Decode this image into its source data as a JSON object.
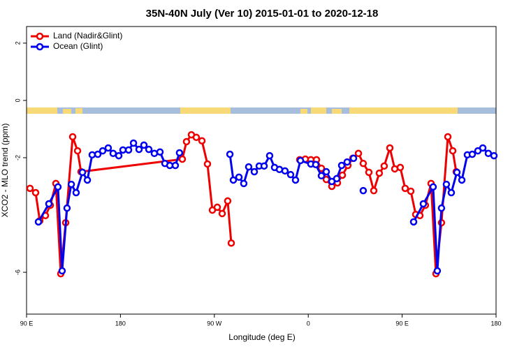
{
  "chart_data": {
    "type": "line",
    "title": "35N-40N July (Ver 10)   2015-01-01 to 2020-12-18",
    "x_label": "Longitude (deg E)",
    "y_label": "XCO2 - MLO trend (ppm)",
    "xlim": [
      90,
      540
    ],
    "xticks": [
      {
        "value": 90,
        "label": "90 E"
      },
      180,
      {
        "value": 270,
        "label": "90 W"
      },
      {
        "value": 360,
        "label": "0"
      },
      {
        "value": 450,
        "label": "90 E"
      },
      {
        "value": 540,
        "label": "180"
      }
    ],
    "ylim": [
      -7.46,
      2.58
    ],
    "yticks": [
      2,
      0,
      -2,
      -6
    ],
    "legend": "top-left",
    "series": [
      {
        "name": "Land (Nadir&Glint)",
        "color": "#ee0000",
        "x": [
          93.3,
          98.7,
          102.7,
          108.1,
          112.8,
          118.1,
          122.8,
          127.5,
          134.2,
          138.9,
          142.2,
          239.3,
          243.3,
          248.0,
          252.7,
          258.1,
          263.4,
          268.1,
          272.8,
          277.5,
          282.8,
          286.2,
          null,
          351.8,
          357.2,
          362.5,
          367.9,
          372.6,
          377.3,
          382.6,
          388.0,
          392.7,
          398.0,
          402.7,
          408.1,
          412.7,
          418.1,
          422.8,
          428.1,
          432.8,
          438.2,
          442.9,
          448.2,
          452.9,
          458.3,
          463.0,
          467.0,
          472.3,
          477.7,
          482.4,
          487.7,
          493.8,
          498.5,
          501.8
        ],
        "values": [
          -3.07,
          -3.22,
          -4.2,
          -4.02,
          -3.66,
          -2.9,
          -6.05,
          -4.27,
          -1.27,
          -1.76,
          -2.49,
          -2.05,
          -1.44,
          -1.2,
          -1.29,
          -1.41,
          -2.22,
          -3.83,
          -3.73,
          -3.95,
          -3.51,
          -4.98,
          null,
          -2.07,
          -2.05,
          -2.07,
          -2.07,
          -2.37,
          -2.76,
          -3.0,
          -2.88,
          -2.61,
          -2.27,
          -2.02,
          -1.85,
          -2.2,
          -2.51,
          -3.15,
          -2.54,
          -2.29,
          -1.66,
          -2.39,
          -2.34,
          -3.07,
          -3.17,
          -3.98,
          -4.02,
          -3.66,
          -2.9,
          -6.05,
          -4.27,
          -1.27,
          -1.76,
          -2.49
        ]
      },
      {
        "name": "Ocean (Glint)",
        "color": "#0000ee",
        "x": [
          101.4,
          111.4,
          120.1,
          124.1,
          128.8,
          132.9,
          137.5,
          143.6,
          148.3,
          152.9,
          158.3,
          163.0,
          168.3,
          173.0,
          178.4,
          182.4,
          187.8,
          192.5,
          197.8,
          202.5,
          207.2,
          212.5,
          217.9,
          222.6,
          227.3,
          232.6,
          236.6,
          null,
          284.9,
          288.2,
          293.6,
          298.2,
          302.9,
          308.3,
          313.0,
          317.7,
          323.0,
          327.7,
          332.4,
          337.7,
          343.1,
          347.8,
          352.5,
          362.5,
          367.2,
          372.6,
          377.3,
          382.6,
          387.3,
          392.0,
          397.3,
          403.4,
          null,
          412.7,
          null,
          461.0,
          470.3,
          479.7,
          483.7,
          487.7,
          492.4,
          497.1,
          502.5,
          507.2,
          512.5,
          517.2,
          522.6,
          527.3,
          532.6,
          538.0
        ],
        "values": [
          -4.24,
          -3.61,
          -3.02,
          -5.95,
          -3.76,
          -2.93,
          -3.22,
          -2.51,
          -2.78,
          -1.9,
          -1.88,
          -1.76,
          -1.66,
          -1.85,
          -1.93,
          -1.73,
          -1.73,
          -1.49,
          -1.71,
          -1.56,
          -1.71,
          -1.85,
          -1.8,
          -2.2,
          -2.27,
          -2.27,
          -1.83,
          null,
          -1.88,
          -2.78,
          -2.68,
          -2.9,
          -2.32,
          -2.49,
          -2.29,
          -2.29,
          -1.93,
          -2.34,
          -2.41,
          -2.46,
          -2.59,
          -2.78,
          -2.1,
          -2.22,
          -2.24,
          -2.63,
          -2.49,
          -2.83,
          -2.73,
          -2.27,
          -2.15,
          -2.02,
          null,
          -3.15,
          null,
          -4.24,
          -3.61,
          -3.02,
          -5.95,
          -3.76,
          -2.93,
          -3.22,
          -2.51,
          -2.78,
          -1.9,
          -1.88,
          -1.76,
          -1.66,
          -1.85,
          -1.93
        ]
      }
    ]
  }
}
